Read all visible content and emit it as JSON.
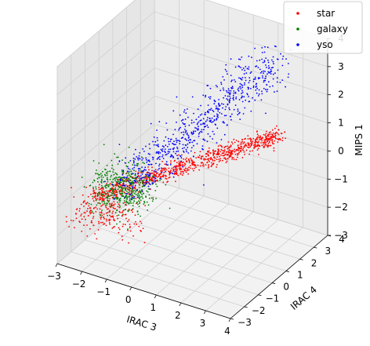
{
  "chart_data": {
    "type": "scatter",
    "projection": "3d",
    "xlabel": "IRAC 3",
    "ylabel": "IRAC 4",
    "zlabel": "MIPS 1",
    "xlim": [
      -3,
      4
    ],
    "ylim": [
      -3,
      4
    ],
    "zlim": [
      -3,
      4
    ],
    "x_ticks": [
      "−3",
      "−2",
      "−1",
      "0",
      "1",
      "2",
      "3",
      "4"
    ],
    "y_ticks": [
      "−3",
      "−2",
      "−1",
      "0",
      "1",
      "2",
      "3",
      "4"
    ],
    "z_ticks": [
      "−3",
      "−2",
      "−1",
      "0",
      "1",
      "2",
      "3",
      "4"
    ],
    "grid": true,
    "legend": "top-right",
    "series": [
      {
        "name": "star",
        "color": "#ff0000",
        "clusters": [
          {
            "from": [
              -2.3,
              -1.6,
              -1.0
            ],
            "to": [
              2.6,
              3.0,
              0.6
            ],
            "spread": [
              0.18,
              0.18,
              0.12
            ],
            "count": 900
          },
          {
            "from": [
              -2.5,
              -2.4,
              -1.2
            ],
            "to": [
              -0.6,
              -1.8,
              -1.2
            ],
            "spread": [
              0.4,
              0.3,
              0.3
            ],
            "count": 200
          }
        ]
      },
      {
        "name": "galaxy",
        "color": "#008000",
        "clusters": [
          {
            "from": [
              -1.8,
              -1.6,
              -0.6
            ],
            "to": [
              -0.7,
              -1.1,
              -0.4
            ],
            "spread": [
              0.45,
              0.35,
              0.4
            ],
            "count": 450
          }
        ]
      },
      {
        "name": "yso",
        "color": "#0000ff",
        "clusters": [
          {
            "from": [
              -1.2,
              -1.3,
              -0.4
            ],
            "to": [
              2.3,
              3.3,
              3.0
            ],
            "spread": [
              0.35,
              0.35,
              0.35
            ],
            "count": 700
          }
        ]
      }
    ]
  }
}
